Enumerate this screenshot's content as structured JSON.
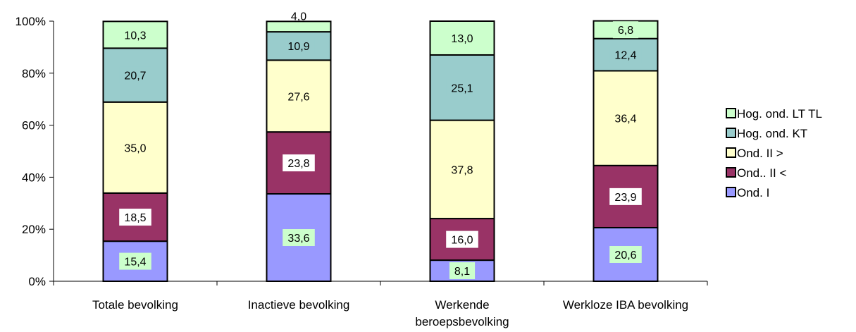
{
  "chart_data": {
    "type": "bar",
    "stacked": true,
    "percent_stacked": true,
    "categories": [
      [
        "Totale bevolking"
      ],
      [
        "Inactieve bevolking"
      ],
      [
        "Werkende",
        "beroepsbevolking"
      ],
      [
        "Werkloze IBA bevolking"
      ]
    ],
    "series": [
      {
        "name": "Ond.  I",
        "color": "#9999ff",
        "values": [
          15.4,
          33.6,
          8.1,
          20.6
        ],
        "labels": [
          "15,4",
          "33,6",
          "8,1",
          "20,6"
        ],
        "label_bg": "#ccffcc"
      },
      {
        "name": "Ond.. II <",
        "color": "#993366",
        "values": [
          18.5,
          23.8,
          16.0,
          23.9
        ],
        "labels": [
          "18,5",
          "23,8",
          "16,0",
          "23,9"
        ],
        "label_bg": "#ffffff"
      },
      {
        "name": "Ond. II >",
        "color": "#ffffcc",
        "values": [
          35.0,
          27.6,
          37.8,
          36.4
        ],
        "labels": [
          "35,0",
          "27,6",
          "37,8",
          "36,4"
        ],
        "label_bg": "#ffffcc"
      },
      {
        "name": "Hog. ond. KT",
        "color": "#99cccc",
        "values": [
          20.7,
          10.9,
          25.1,
          12.4
        ],
        "labels": [
          "20,7",
          "10,9",
          "25,1",
          "12,4"
        ],
        "label_bg": "#99cccc"
      },
      {
        "name": "Hog. ond. LT TL",
        "color": "#ccffcc",
        "values": [
          10.3,
          4.0,
          13.0,
          6.8
        ],
        "labels": [
          "10,3",
          "4,0",
          "13,0",
          "6,8"
        ],
        "label_bg": "#ccffcc"
      }
    ],
    "y_ticks": [
      "0%",
      "20%",
      "40%",
      "60%",
      "80%",
      "100%"
    ],
    "ylim": [
      0,
      100
    ],
    "grid": false,
    "legend": "right"
  }
}
